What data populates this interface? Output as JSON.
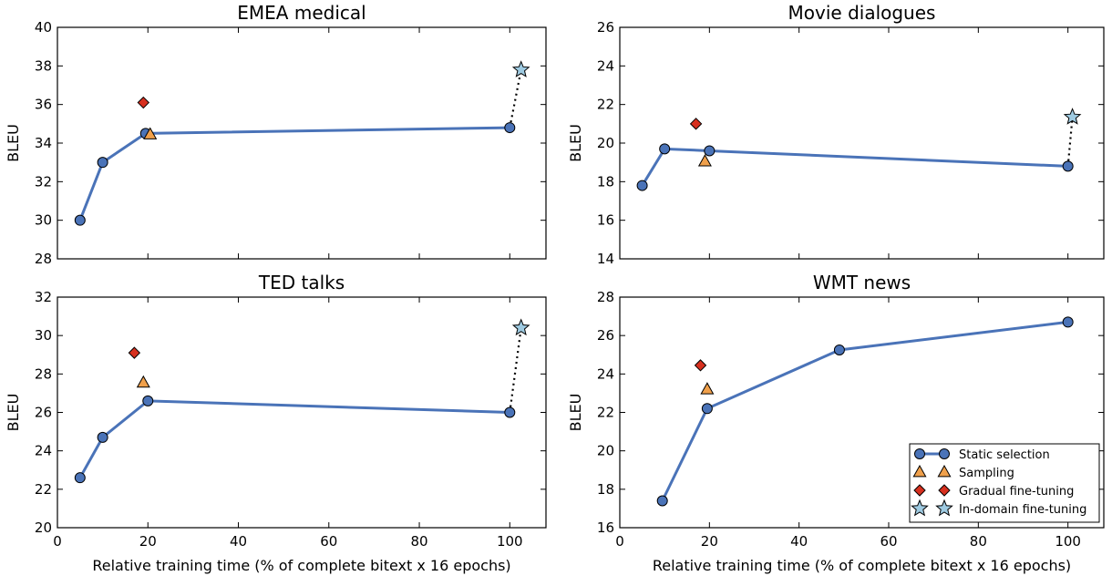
{
  "chart_data": [
    {
      "type": "line",
      "title": "EMEA medical",
      "xlabel": "",
      "ylabel": "BLEU",
      "xlim": [
        0,
        108
      ],
      "ylim": [
        28,
        40
      ],
      "xticks": [
        0,
        20,
        40,
        60,
        80,
        100
      ],
      "yticks": [
        28,
        30,
        32,
        34,
        36,
        38,
        40
      ],
      "show_xticklabels": false,
      "series": [
        {
          "name": "Static selection",
          "marker": "circle",
          "line": "solid",
          "x": [
            5,
            10,
            19.5,
            100
          ],
          "y": [
            30.0,
            33.0,
            34.5,
            34.8
          ]
        },
        {
          "name": "Sampling",
          "marker": "triangle",
          "line": "none",
          "x": [
            20.5
          ],
          "y": [
            34.45
          ]
        },
        {
          "name": "Gradual fine-tuning",
          "marker": "diamond",
          "line": "none",
          "x": [
            19.0
          ],
          "y": [
            36.1
          ]
        },
        {
          "name": "In-domain fine-tuning",
          "marker": "star",
          "line": "none",
          "x": [
            102.5
          ],
          "y": [
            37.8
          ]
        }
      ],
      "connector": {
        "x": [
          100,
          102.5
        ],
        "y": [
          34.8,
          37.8
        ]
      }
    },
    {
      "type": "line",
      "title": "Movie dialogues",
      "xlabel": "",
      "ylabel": "BLEU",
      "xlim": [
        0,
        108
      ],
      "ylim": [
        14,
        26
      ],
      "xticks": [
        0,
        20,
        40,
        60,
        80,
        100
      ],
      "yticks": [
        14,
        16,
        18,
        20,
        22,
        24,
        26
      ],
      "show_xticklabels": false,
      "series": [
        {
          "name": "Static selection",
          "marker": "circle",
          "line": "solid",
          "x": [
            5,
            10,
            20,
            100
          ],
          "y": [
            17.8,
            19.7,
            19.6,
            18.8
          ]
        },
        {
          "name": "Sampling",
          "marker": "triangle",
          "line": "none",
          "x": [
            19
          ],
          "y": [
            19.05
          ]
        },
        {
          "name": "Gradual fine-tuning",
          "marker": "diamond",
          "line": "none",
          "x": [
            17
          ],
          "y": [
            21.0
          ]
        },
        {
          "name": "In-domain fine-tuning",
          "marker": "star",
          "line": "none",
          "x": [
            101
          ],
          "y": [
            21.35
          ]
        }
      ],
      "connector": {
        "x": [
          100,
          101
        ],
        "y": [
          18.8,
          21.35
        ]
      }
    },
    {
      "type": "line",
      "title": "TED talks",
      "xlabel": "Relative training time (% of complete bitext x 16 epochs)",
      "ylabel": "BLEU",
      "xlim": [
        0,
        108
      ],
      "ylim": [
        20,
        32
      ],
      "xticks": [
        0,
        20,
        40,
        60,
        80,
        100
      ],
      "yticks": [
        20,
        22,
        24,
        26,
        28,
        30,
        32
      ],
      "show_xticklabels": true,
      "series": [
        {
          "name": "Static selection",
          "marker": "circle",
          "line": "solid",
          "x": [
            5,
            10,
            20,
            100
          ],
          "y": [
            22.6,
            24.7,
            26.6,
            26.0
          ]
        },
        {
          "name": "Sampling",
          "marker": "triangle",
          "line": "none",
          "x": [
            19
          ],
          "y": [
            27.55
          ]
        },
        {
          "name": "Gradual fine-tuning",
          "marker": "diamond",
          "line": "none",
          "x": [
            17
          ],
          "y": [
            29.1
          ]
        },
        {
          "name": "In-domain fine-tuning",
          "marker": "star",
          "line": "none",
          "x": [
            102.5
          ],
          "y": [
            30.4
          ]
        }
      ],
      "connector": {
        "x": [
          100,
          102.5
        ],
        "y": [
          26.0,
          30.4
        ]
      }
    },
    {
      "type": "line",
      "title": "WMT news",
      "xlabel": "Relative training time (% of complete bitext x 16 epochs)",
      "ylabel": "BLEU",
      "xlim": [
        0,
        108
      ],
      "ylim": [
        16,
        28
      ],
      "xticks": [
        0,
        20,
        40,
        60,
        80,
        100
      ],
      "yticks": [
        16,
        18,
        20,
        22,
        24,
        26,
        28
      ],
      "show_xticklabels": true,
      "series": [
        {
          "name": "Static selection",
          "marker": "circle",
          "line": "solid",
          "x": [
            9.5,
            19.5,
            49,
            100
          ],
          "y": [
            17.4,
            22.2,
            25.25,
            26.7
          ]
        },
        {
          "name": "Sampling",
          "marker": "triangle",
          "line": "none",
          "x": [
            19.5
          ],
          "y": [
            23.2
          ]
        },
        {
          "name": "Gradual fine-tuning",
          "marker": "diamond",
          "line": "none",
          "x": [
            18
          ],
          "y": [
            24.45
          ]
        },
        {
          "name": "In-domain fine-tuning",
          "marker": "star",
          "line": "none",
          "x": [],
          "y": []
        }
      ],
      "connector": null,
      "legend": {
        "placement": "lower-right",
        "entries": [
          "Static selection",
          "Sampling",
          "Gradual fine-tuning",
          "In-domain fine-tuning"
        ]
      }
    }
  ],
  "colors": {
    "static_line": "#4a73b8",
    "static_marker": "#4a73b8",
    "sampling": "#f0a04b",
    "gradual": "#d7301f",
    "indomain": "#9ecae1",
    "connector": "#000000",
    "axes": "#000000"
  }
}
